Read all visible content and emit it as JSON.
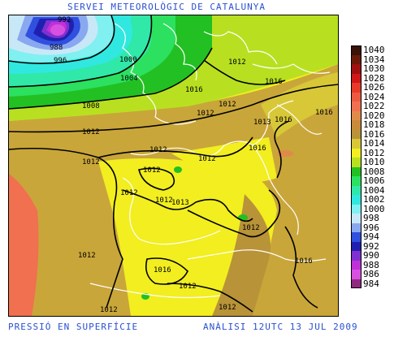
{
  "header": {
    "title": "SERVEI METEOROLÒGIC DE CATALUNYA"
  },
  "footer": {
    "left": "PRESSIÓ EN SUPERFÍCIE",
    "right": "ANÀLISI 12UTC 13 JUL 2009"
  },
  "legend": {
    "items": [
      {
        "value": "1040",
        "color": "#3a1208"
      },
      {
        "value": "1034",
        "color": "#6b1a0a"
      },
      {
        "value": "1030",
        "color": "#a01010"
      },
      {
        "value": "1028",
        "color": "#d01818"
      },
      {
        "value": "1026",
        "color": "#e83a28"
      },
      {
        "value": "1024",
        "color": "#ee5a40"
      },
      {
        "value": "1022",
        "color": "#f07050"
      },
      {
        "value": "1020",
        "color": "#e08a4a"
      },
      {
        "value": "1018",
        "color": "#c98a3a"
      },
      {
        "value": "1016",
        "color": "#b89338"
      },
      {
        "value": "1014",
        "color": "#d8c838"
      },
      {
        "value": "1012",
        "color": "#f2ee20"
      },
      {
        "value": "1010",
        "color": "#b8e020"
      },
      {
        "value": "1008",
        "color": "#22c022"
      },
      {
        "value": "1006",
        "color": "#2ce060"
      },
      {
        "value": "1004",
        "color": "#30e8a8"
      },
      {
        "value": "1002",
        "color": "#30e8e0"
      },
      {
        "value": "1000",
        "color": "#80f0f0"
      },
      {
        "value": "998",
        "color": "#c8e8f8"
      },
      {
        "value": "996",
        "color": "#8aa8f0"
      },
      {
        "value": "994",
        "color": "#3050e0"
      },
      {
        "value": "992",
        "color": "#2020b0"
      },
      {
        "value": "990",
        "color": "#8030d0"
      },
      {
        "value": "988",
        "color": "#c030d8"
      },
      {
        "value": "986",
        "color": "#d850e0"
      },
      {
        "value": "984",
        "color": "#902880"
      }
    ]
  },
  "isobar_labels": [
    "992",
    "988",
    "996",
    "1000",
    "1004",
    "1008",
    "1012",
    "1016",
    "1012",
    "1012",
    "1012",
    "1012",
    "1016",
    "1013",
    "1016",
    "1016",
    "1012",
    "1012",
    "1012",
    "1012",
    "1013",
    "1012",
    "1016",
    "1012",
    "1012",
    "1016",
    "1012",
    "1012",
    "1016",
    "1012"
  ],
  "palette": {
    "text_blue": "#2a4fd0",
    "coastline": "#ffffff",
    "isobar": "#000000"
  }
}
